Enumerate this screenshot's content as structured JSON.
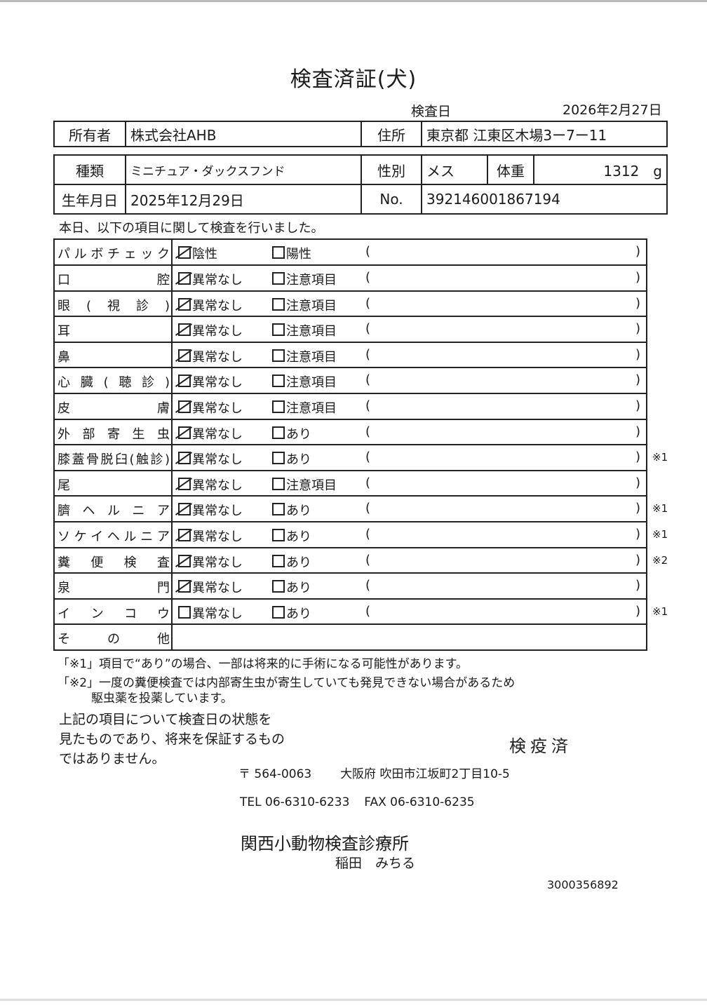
{
  "title": "検査済証(犬)",
  "exam_date": {
    "label": "検査日",
    "value": "2026年2月27日"
  },
  "owner": {
    "label": "所有者",
    "value": "株式会社AHB"
  },
  "address": {
    "label": "住所",
    "value": "東京都 江東区木場3ー7ー11"
  },
  "breed": {
    "label": "種類",
    "value": "ミニチュア・ダックスフンド"
  },
  "sex": {
    "label": "性別",
    "value": "メス"
  },
  "weight": {
    "label": "体重",
    "value": "1312　g"
  },
  "birth": {
    "label": "生年月日",
    "value": "2025年12月29日"
  },
  "number": {
    "label": "No.",
    "value": "392146001867194"
  },
  "intro": "本日、以下の項目に関して検査を行いました。",
  "rows": [
    {
      "name": "パルボチェック",
      "opt1": "陰性",
      "opt1_checked": true,
      "opt2": "陽性",
      "note": ""
    },
    {
      "name": "口腔",
      "opt1": "異常なし",
      "opt1_checked": true,
      "opt2": "注意項目",
      "note": ""
    },
    {
      "name": "眼(視診)",
      "opt1": "異常なし",
      "opt1_checked": true,
      "opt2": "注意項目",
      "note": ""
    },
    {
      "name": "耳",
      "opt1": "異常なし",
      "opt1_checked": true,
      "opt2": "注意項目",
      "note": ""
    },
    {
      "name": "鼻",
      "opt1": "異常なし",
      "opt1_checked": true,
      "opt2": "注意項目",
      "note": ""
    },
    {
      "name": "心臓(聴診)",
      "opt1": "異常なし",
      "opt1_checked": true,
      "opt2": "注意項目",
      "note": ""
    },
    {
      "name": "皮膚",
      "opt1": "異常なし",
      "opt1_checked": true,
      "opt2": "注意項目",
      "note": ""
    },
    {
      "name": "外部寄生虫",
      "opt1": "異常なし",
      "opt1_checked": true,
      "opt2": "あり",
      "note": ""
    },
    {
      "name": "膝蓋骨脱臼(触診)",
      "opt1": "異常なし",
      "opt1_checked": true,
      "opt2": "あり",
      "note": "※1"
    },
    {
      "name": "尾",
      "opt1": "異常なし",
      "opt1_checked": true,
      "opt2": "注意項目",
      "note": ""
    },
    {
      "name": "臍ヘルニア",
      "opt1": "異常なし",
      "opt1_checked": true,
      "opt2": "あり",
      "note": "※1"
    },
    {
      "name": "ソケイヘルニア",
      "opt1": "異常なし",
      "opt1_checked": true,
      "opt2": "あり",
      "note": "※1"
    },
    {
      "name": "糞便検査",
      "opt1": "異常なし",
      "opt1_checked": true,
      "opt2": "あり",
      "note": "※2"
    },
    {
      "name": "泉門",
      "opt1": "異常なし",
      "opt1_checked": true,
      "opt2": "あり",
      "note": ""
    },
    {
      "name": "インコウ",
      "opt1": "異常なし",
      "opt1_checked": false,
      "opt2": "あり",
      "note": "※1"
    }
  ],
  "other_label": "その他",
  "paren_open": "(",
  "paren_close": ")",
  "footnote1": "「※1」項目で“あり”の場合、一部は将来的に手術になる可能性があります。",
  "footnote2_line1": "「※2」一度の糞便検査では内部寄生虫が寄生していても発見できない場合があるため",
  "footnote2_line2": "駆虫薬を投薬しています。",
  "disclaimer": [
    "上記の項目について検査日の状態を",
    "見たものであり、将来を保証するもの",
    "ではありません。"
  ],
  "stamp": "検疫済",
  "clinic": {
    "postal": "〒 564-0063",
    "address": "大阪府 吹田市江坂町2丁目10-5",
    "tel": "TEL 06-6310-6233",
    "fax": "FAX 06-6310-6235",
    "name": "関西小動物検査診療所",
    "person": "稲田　みちる"
  },
  "serial": "3000356892"
}
